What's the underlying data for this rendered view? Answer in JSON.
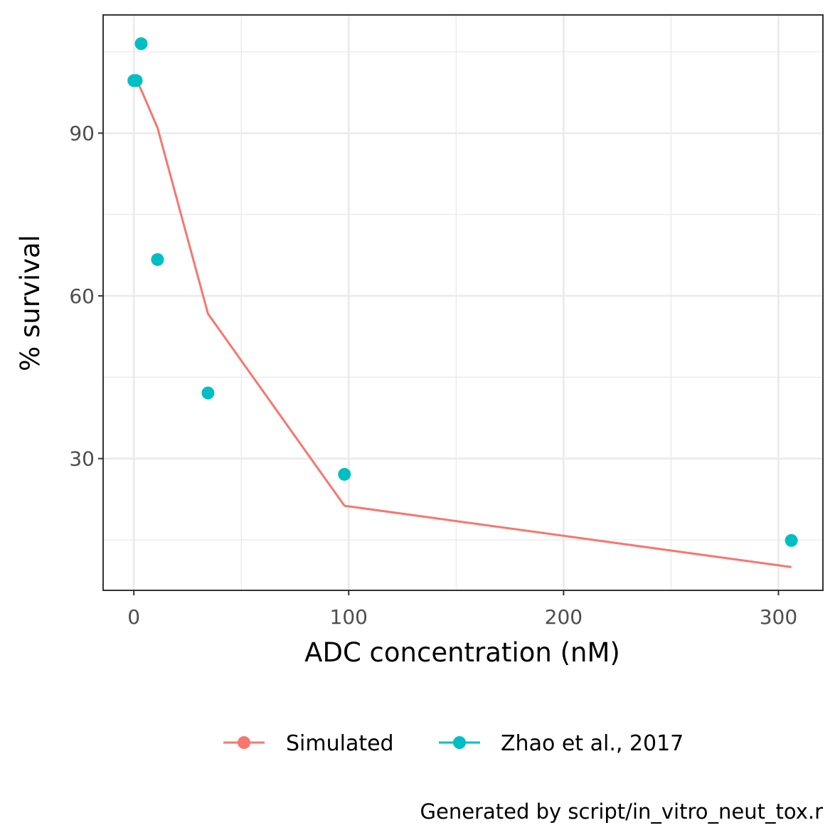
{
  "chart_data": {
    "type": "line",
    "title": "",
    "xlabel": "ADC concentration (nM)",
    "ylabel": "% survival",
    "caption": "Generated by script/in_vitro_neut_tox.r",
    "xlim": [
      -14.3,
      320.7
    ],
    "ylim": [
      5.7,
      111.8
    ],
    "x_ticks": [
      0,
      100,
      200,
      300
    ],
    "x_tick_labels": [
      "0",
      "100",
      "200",
      "300"
    ],
    "x_minor_ticks": [
      50,
      150,
      250
    ],
    "y_ticks": [
      30,
      60,
      90
    ],
    "y_tick_labels": [
      "30",
      "60",
      "90"
    ],
    "y_minor_ticks": [
      15,
      45,
      75,
      105
    ],
    "grid": true,
    "legend_position": "bottom",
    "series": [
      {
        "name": "Simulated",
        "type": "line",
        "color": "#F8766D",
        "x": [
          0,
          1.1,
          3.4,
          11,
          34.5,
          98,
          306
        ],
        "y": [
          100,
          99.9,
          98,
          91,
          56.7,
          21.3,
          10
        ]
      },
      {
        "name": "Zhao et al., 2017",
        "type": "scatter",
        "color": "#00BFC4",
        "x": [
          0,
          1.1,
          3.4,
          11,
          34.5,
          98,
          306
        ],
        "y": [
          99.7,
          99.7,
          106.5,
          66.7,
          42.1,
          27.1,
          14.9
        ]
      }
    ]
  }
}
